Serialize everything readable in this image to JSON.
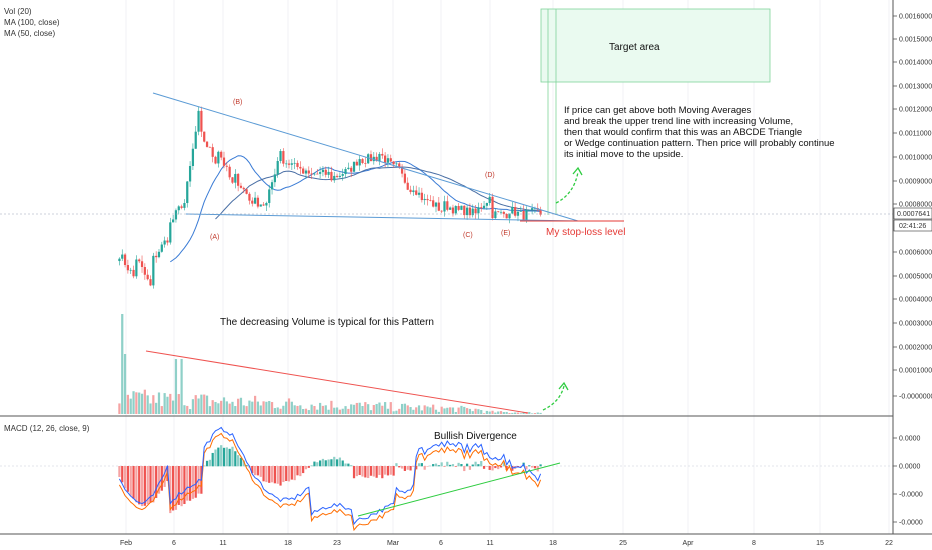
{
  "indicators_legend": [
    "Vol (20)",
    "MA (100, close)",
    "MA (50, close)"
  ],
  "macd_legend": "MACD (12, 26, close, 9)",
  "annotations": {
    "target": "Target area",
    "note_lines": [
      "If price can get above both Moving Averages",
      "and break the upper trend line with increasing Volume,",
      "then that would confirm that this was an ABCDE Triangle",
      "or Wedge continuation pattern. Then price will probably continue",
      "its initial move to the upside."
    ],
    "stoploss": "My stop-loss level",
    "volume_note": "The decreasing Volume is typical for this Pattern",
    "divergence": "Bullish Divergence",
    "wave_labels": [
      "(A)",
      "(B)",
      "(C)",
      "(D)",
      "(E)"
    ]
  },
  "price_axis": {
    "ticks": [
      "0.0016000",
      "0.0015000",
      "0.0014000",
      "0.0013000",
      "0.0012000",
      "0.0011000",
      "0.0010000",
      "0.0009000",
      "0.0008000",
      "0.0006000",
      "0.0005000",
      "0.0004000",
      "0.0003000",
      "0.0002000",
      "0.0001000",
      "-0.0000000"
    ],
    "current_price": "0.0007641",
    "countdown": "02:41:26"
  },
  "macd_axis": {
    "ticks": [
      "0.0000",
      "0.0000",
      "-0.0000",
      "-0.0000"
    ]
  },
  "time_axis": {
    "ticks": [
      "Feb",
      "6",
      "11",
      "18",
      "23",
      "Mar",
      "6",
      "11",
      "18",
      "25",
      "Apr",
      "8",
      "15",
      "22"
    ]
  },
  "colors": {
    "up": "#26a69a",
    "down": "#ef5350",
    "vol_up": "#8fd0c8",
    "vol_down": "#f5a3a3",
    "ma100": "#4a6fa5",
    "ma50": "#3a7bd5",
    "macd_line": "#2962ff",
    "signal_line": "#ff6d00",
    "trend": "#5b9bd5",
    "stoploss": "#e53935",
    "green": "#2ecc40"
  },
  "chart_data": {
    "type": "candlestick",
    "price_range": [
      -2e-05,
      0.00165
    ],
    "price_path": [
      [
        0.00059,
        0.00052
      ],
      [
        0.00058,
        0.00048
      ],
      [
        0.00056,
        0.00044
      ],
      [
        0.0007,
        0.00066
      ],
      [
        0.0008,
        0.00082
      ],
      [
        0.0011,
        0.00123
      ],
      [
        0.00105,
        0.00098
      ],
      [
        0.00093,
        0.00088
      ],
      [
        0.00082,
        0.00083
      ],
      [
        0.00078,
        0.0008
      ],
      [
        0.00098,
        0.00105
      ],
      [
        0.00094,
        0.00097
      ],
      [
        0.00093,
        0.00092
      ],
      [
        0.00091,
        0.00093
      ],
      [
        0.00093,
        0.00094
      ],
      [
        0.00099,
        0.00101
      ],
      [
        0.00102,
        0.001
      ],
      [
        0.00097,
        0.00095
      ],
      [
        0.00089,
        0.00086
      ],
      [
        0.00082,
        0.0008
      ],
      [
        0.0008,
        0.00077
      ],
      [
        0.00078,
        0.00077
      ],
      [
        0.00077,
        0.00076
      ],
      [
        0.00076,
        0.00084
      ],
      [
        0.00078,
        0.00076
      ],
      [
        0.00076,
        0.00075
      ],
      [
        0.00076,
        0.00077
      ]
    ],
    "stoploss_level": 0.00075,
    "wave_points": [
      {
        "label": "(A)",
        "date": "Feb 9",
        "price": 0.00076
      },
      {
        "label": "(B)",
        "date": "Feb 12",
        "price": 0.00112
      },
      {
        "label": "(C)",
        "date": "Mar 9",
        "price": 0.00075
      },
      {
        "label": "(D)",
        "date": "Mar 11",
        "price": 0.00085
      },
      {
        "label": "(E)",
        "date": "Mar 13",
        "price": 0.00075
      }
    ]
  }
}
